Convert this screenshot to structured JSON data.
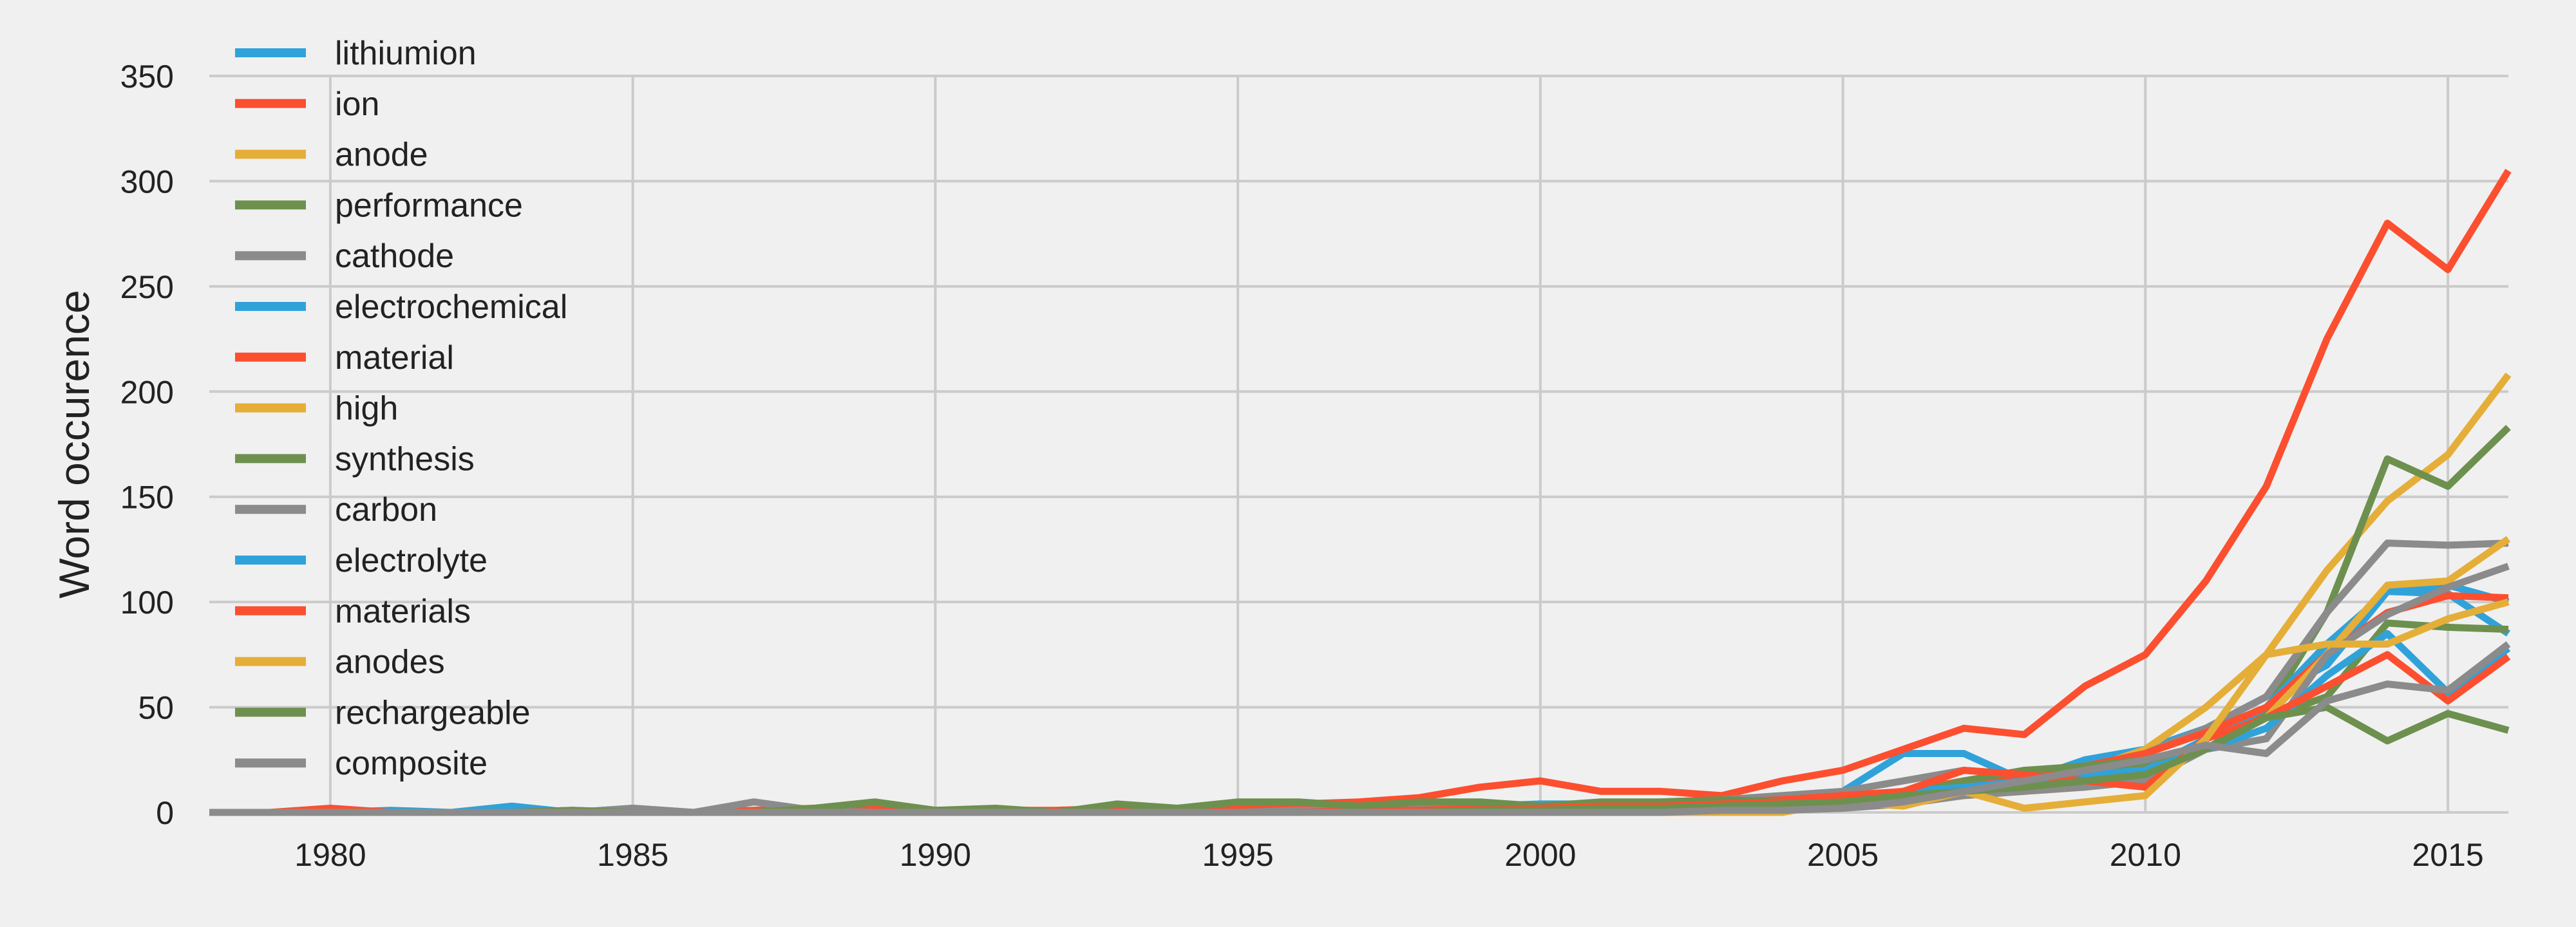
{
  "chart_data": {
    "type": "line",
    "title": "",
    "xlabel": "",
    "ylabel": "Word occurence",
    "xlim": [
      1978,
      2016
    ],
    "ylim": [
      0,
      350
    ],
    "xticks": [
      1980,
      1985,
      1990,
      1995,
      2000,
      2005,
      2010,
      2015
    ],
    "yticks": [
      0,
      50,
      100,
      150,
      200,
      250,
      300,
      350
    ],
    "grid": true,
    "legend_position": "top-left",
    "x": [
      1978,
      1979,
      1980,
      1981,
      1982,
      1983,
      1984,
      1985,
      1986,
      1987,
      1988,
      1989,
      1990,
      1991,
      1992,
      1993,
      1994,
      1995,
      1996,
      1997,
      1998,
      1999,
      2000,
      2001,
      2002,
      2003,
      2004,
      2005,
      2006,
      2007,
      2008,
      2009,
      2010,
      2011,
      2012,
      2013,
      2014,
      2015,
      2016
    ],
    "series": [
      {
        "name": "lithiumion",
        "color": "#30a2da",
        "values": [
          0,
          0,
          0,
          1,
          0,
          3,
          0,
          2,
          0,
          1,
          1,
          0,
          0,
          0,
          0,
          0,
          0,
          1,
          1,
          1,
          2,
          3,
          4,
          4,
          5,
          6,
          8,
          10,
          28,
          28,
          15,
          25,
          30,
          40,
          55,
          70,
          105,
          104,
          85
        ]
      },
      {
        "name": "ion",
        "color": "#fc4f30",
        "values": [
          0,
          0,
          2,
          0,
          0,
          0,
          1,
          0,
          0,
          1,
          2,
          2,
          1,
          1,
          1,
          2,
          2,
          3,
          4,
          5,
          7,
          12,
          15,
          10,
          10,
          8,
          15,
          20,
          30,
          40,
          37,
          60,
          75,
          110,
          155,
          225,
          280,
          258,
          305
        ]
      },
      {
        "name": "anode",
        "color": "#e5ae38",
        "values": [
          0,
          0,
          0,
          0,
          0,
          0,
          0,
          0,
          0,
          0,
          0,
          0,
          0,
          0,
          0,
          0,
          0,
          0,
          0,
          0,
          0,
          0,
          1,
          1,
          2,
          3,
          3,
          5,
          7,
          10,
          15,
          20,
          30,
          50,
          75,
          115,
          148,
          170,
          208
        ]
      },
      {
        "name": "performance",
        "color": "#6d904f",
        "values": [
          0,
          0,
          0,
          0,
          0,
          0,
          0,
          0,
          0,
          0,
          0,
          0,
          0,
          0,
          0,
          0,
          0,
          0,
          0,
          0,
          0,
          1,
          1,
          2,
          2,
          3,
          4,
          5,
          8,
          12,
          15,
          18,
          22,
          30,
          48,
          95,
          168,
          155,
          183
        ]
      },
      {
        "name": "cathode",
        "color": "#8b8b8b",
        "values": [
          0,
          0,
          0,
          0,
          0,
          0,
          0,
          2,
          0,
          5,
          1,
          0,
          0,
          0,
          0,
          0,
          0,
          0,
          1,
          1,
          2,
          2,
          3,
          4,
          5,
          6,
          8,
          10,
          15,
          20,
          18,
          22,
          28,
          40,
          55,
          95,
          128,
          127,
          128
        ]
      },
      {
        "name": "electrochemical",
        "color": "#30a2da",
        "values": [
          0,
          0,
          0,
          0,
          0,
          0,
          0,
          0,
          0,
          0,
          0,
          0,
          0,
          0,
          0,
          0,
          0,
          0,
          0,
          0,
          0,
          0,
          1,
          1,
          1,
          2,
          3,
          4,
          6,
          8,
          12,
          16,
          20,
          35,
          50,
          80,
          105,
          108,
          100
        ]
      },
      {
        "name": "material",
        "color": "#fc4f30",
        "values": [
          0,
          0,
          0,
          0,
          0,
          0,
          0,
          0,
          0,
          0,
          0,
          0,
          0,
          0,
          0,
          0,
          0,
          0,
          0,
          1,
          1,
          2,
          2,
          3,
          4,
          5,
          6,
          8,
          10,
          15,
          18,
          22,
          28,
          38,
          50,
          75,
          95,
          103,
          102
        ]
      },
      {
        "name": "high",
        "color": "#e5ae38",
        "values": [
          0,
          0,
          0,
          0,
          0,
          0,
          0,
          0,
          0,
          0,
          0,
          0,
          0,
          0,
          0,
          0,
          0,
          0,
          0,
          0,
          0,
          0,
          0,
          0,
          1,
          1,
          2,
          3,
          5,
          8,
          10,
          15,
          20,
          30,
          45,
          75,
          108,
          110,
          130
        ]
      },
      {
        "name": "synthesis",
        "color": "#6d904f",
        "values": [
          0,
          0,
          0,
          0,
          0,
          0,
          1,
          0,
          0,
          0,
          2,
          5,
          1,
          2,
          0,
          4,
          2,
          5,
          5,
          3,
          5,
          5,
          3,
          5,
          5,
          6,
          5,
          6,
          8,
          15,
          20,
          22,
          25,
          30,
          45,
          55,
          90,
          88,
          87
        ]
      },
      {
        "name": "carbon",
        "color": "#8b8b8b",
        "values": [
          0,
          0,
          0,
          0,
          0,
          0,
          0,
          0,
          0,
          0,
          0,
          0,
          0,
          0,
          0,
          0,
          0,
          0,
          0,
          0,
          0,
          0,
          0,
          0,
          0,
          1,
          1,
          2,
          4,
          8,
          10,
          12,
          15,
          30,
          35,
          75,
          94,
          107,
          117
        ]
      },
      {
        "name": "electrolyte",
        "color": "#30a2da",
        "values": [
          0,
          0,
          0,
          0,
          0,
          0,
          0,
          0,
          0,
          0,
          0,
          0,
          0,
          0,
          0,
          0,
          0,
          0,
          0,
          0,
          0,
          0,
          0,
          0,
          1,
          2,
          3,
          5,
          10,
          12,
          15,
          18,
          20,
          30,
          40,
          65,
          85,
          57,
          78
        ]
      },
      {
        "name": "materials",
        "color": "#fc4f30",
        "values": [
          0,
          0,
          0,
          0,
          0,
          0,
          0,
          0,
          0,
          0,
          0,
          0,
          0,
          0,
          0,
          0,
          0,
          0,
          0,
          0,
          1,
          1,
          2,
          3,
          3,
          4,
          5,
          7,
          10,
          20,
          18,
          15,
          12,
          35,
          45,
          60,
          75,
          53,
          74
        ]
      },
      {
        "name": "anodes",
        "color": "#e5ae38",
        "values": [
          0,
          0,
          0,
          0,
          0,
          0,
          0,
          0,
          0,
          0,
          0,
          0,
          0,
          0,
          0,
          0,
          0,
          0,
          0,
          0,
          0,
          0,
          0,
          0,
          0,
          0,
          0,
          5,
          3,
          10,
          2,
          5,
          8,
          35,
          75,
          80,
          80,
          92,
          100
        ]
      },
      {
        "name": "rechargeable",
        "color": "#6d904f",
        "values": [
          0,
          0,
          0,
          0,
          0,
          0,
          0,
          0,
          0,
          0,
          0,
          0,
          0,
          0,
          0,
          0,
          0,
          0,
          0,
          0,
          0,
          1,
          1,
          2,
          2,
          3,
          4,
          5,
          8,
          10,
          12,
          15,
          18,
          30,
          45,
          50,
          34,
          47,
          39
        ]
      },
      {
        "name": "composite",
        "color": "#8b8b8b",
        "values": [
          0,
          0,
          0,
          0,
          0,
          0,
          0,
          0,
          0,
          0,
          0,
          0,
          0,
          0,
          0,
          0,
          0,
          0,
          0,
          0,
          0,
          0,
          0,
          0,
          0,
          1,
          1,
          2,
          5,
          10,
          15,
          20,
          25,
          32,
          28,
          53,
          61,
          58,
          80
        ]
      }
    ]
  }
}
